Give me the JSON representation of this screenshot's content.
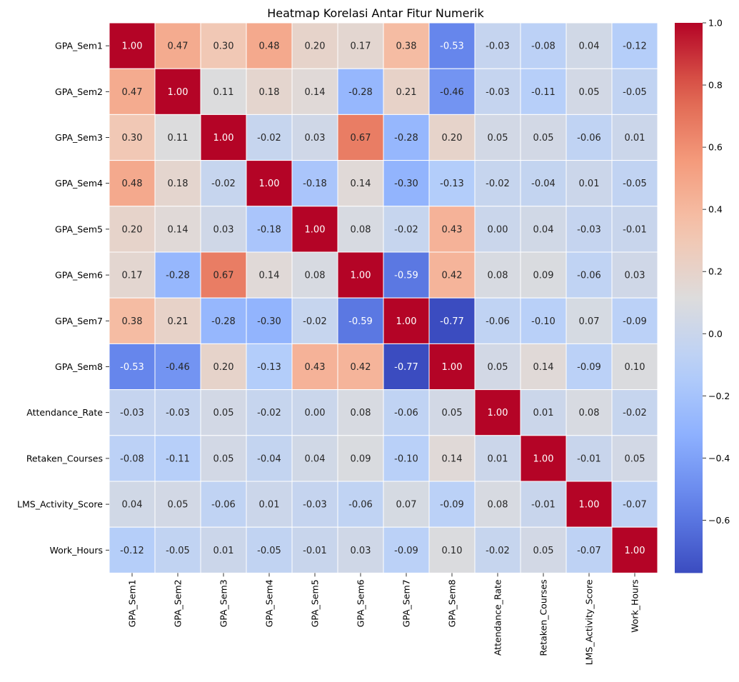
{
  "chart_data": {
    "type": "heatmap",
    "title": "Heatmap Korelasi Antar Fitur Numerik",
    "labels": [
      "GPA_Sem1",
      "GPA_Sem2",
      "GPA_Sem3",
      "GPA_Sem4",
      "GPA_Sem5",
      "GPA_Sem6",
      "GPA_Sem7",
      "GPA_Sem8",
      "Attendance_Rate",
      "Retaken_Courses",
      "LMS_Activity_Score",
      "Work_Hours"
    ],
    "matrix": [
      [
        1.0,
        0.47,
        0.3,
        0.48,
        0.2,
        0.17,
        0.38,
        -0.53,
        -0.03,
        -0.08,
        0.04,
        -0.12
      ],
      [
        0.47,
        1.0,
        0.11,
        0.18,
        0.14,
        -0.28,
        0.21,
        -0.46,
        -0.03,
        -0.11,
        0.05,
        -0.05
      ],
      [
        0.3,
        0.11,
        1.0,
        -0.02,
        0.03,
        0.67,
        -0.28,
        0.2,
        0.05,
        0.05,
        -0.06,
        0.01
      ],
      [
        0.48,
        0.18,
        -0.02,
        1.0,
        -0.18,
        0.14,
        -0.3,
        -0.13,
        -0.02,
        -0.04,
        0.01,
        -0.05
      ],
      [
        0.2,
        0.14,
        0.03,
        -0.18,
        1.0,
        0.08,
        -0.02,
        0.43,
        0.0,
        0.04,
        -0.03,
        -0.01
      ],
      [
        0.17,
        -0.28,
        0.67,
        0.14,
        0.08,
        1.0,
        -0.59,
        0.42,
        0.08,
        0.09,
        -0.06,
        0.03
      ],
      [
        0.38,
        0.21,
        -0.28,
        -0.3,
        -0.02,
        -0.59,
        1.0,
        -0.77,
        -0.06,
        -0.1,
        0.07,
        -0.09
      ],
      [
        -0.53,
        -0.46,
        0.2,
        -0.13,
        0.43,
        0.42,
        -0.77,
        1.0,
        0.05,
        0.14,
        -0.09,
        0.1
      ],
      [
        -0.03,
        -0.03,
        0.05,
        -0.02,
        0.0,
        0.08,
        -0.06,
        0.05,
        1.0,
        0.01,
        0.08,
        -0.02
      ],
      [
        -0.08,
        -0.11,
        0.05,
        -0.04,
        0.04,
        0.09,
        -0.1,
        0.14,
        0.01,
        1.0,
        -0.01,
        0.05
      ],
      [
        0.04,
        0.05,
        -0.06,
        0.01,
        -0.03,
        -0.06,
        0.07,
        -0.09,
        0.08,
        -0.01,
        1.0,
        -0.07
      ],
      [
        -0.12,
        -0.05,
        0.01,
        -0.05,
        -0.01,
        0.03,
        -0.09,
        0.1,
        -0.02,
        0.05,
        -0.07,
        1.0
      ]
    ],
    "value_format": "2 decimals",
    "colormap": "coolwarm",
    "color_range": [
      -0.77,
      1.0
    ],
    "colorbar_ticks": [
      1.0,
      0.8,
      0.6,
      0.4,
      0.2,
      0.0,
      -0.2,
      -0.4,
      -0.6
    ],
    "colorbar_tick_labels": [
      "1.0",
      "0.8",
      "0.6",
      "0.4",
      "0.2",
      "0.0",
      "−0.2",
      "−0.4",
      "−0.6"
    ],
    "colorbar_placement": "right",
    "cell_separator_color": "#ffffff",
    "xlabel": "",
    "ylabel": ""
  }
}
